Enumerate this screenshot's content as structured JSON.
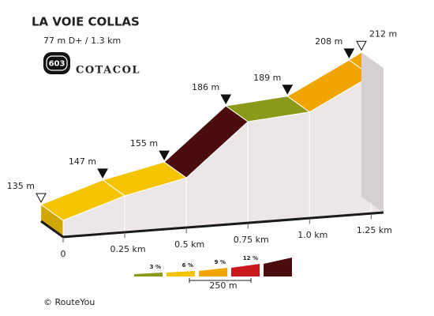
{
  "chart_data": {
    "type": "profile",
    "title": "LA VOIE COLLAS",
    "subtitle": "77 m D+ / 1.3 km",
    "logo_number": "603",
    "logo_text": "COTACOL",
    "x": [
      0,
      0.25,
      0.5,
      0.75,
      1.0,
      1.25,
      1.3
    ],
    "values": [
      135,
      147,
      155,
      186,
      189,
      208,
      212
    ],
    "value_labels": [
      "135 m",
      "147 m",
      "155 m",
      "186 m",
      "189 m",
      "208 m",
      "212 m"
    ],
    "segment_colors": [
      "#f5c400",
      "#f5c400",
      "#4a0c0c",
      "#8c9a1c",
      "#f0a500",
      "#f0a500"
    ],
    "xlim": [
      0,
      1.3
    ],
    "ylim": [
      125,
      215
    ],
    "xticks": [
      0,
      {
        "value": 0.25,
        "label": "0.25 km"
      },
      {
        "value": 0.5,
        "label": "0.5 km"
      },
      {
        "value": 0.75,
        "label": "0.75 km"
      },
      {
        "value": 1.0,
        "label": "1.0 km"
      },
      {
        "value": 1.25,
        "label": "1.25 km"
      }
    ],
    "legend_colors": [
      "#8c9a1c",
      "#f5c400",
      "#f0a500",
      "#c8181e",
      "#4a0c0c"
    ],
    "legend_labels": [
      "3 %",
      "6 %",
      "9 %",
      "12 %"
    ],
    "scale_label": "250 m",
    "footer": "© RouteYou"
  }
}
